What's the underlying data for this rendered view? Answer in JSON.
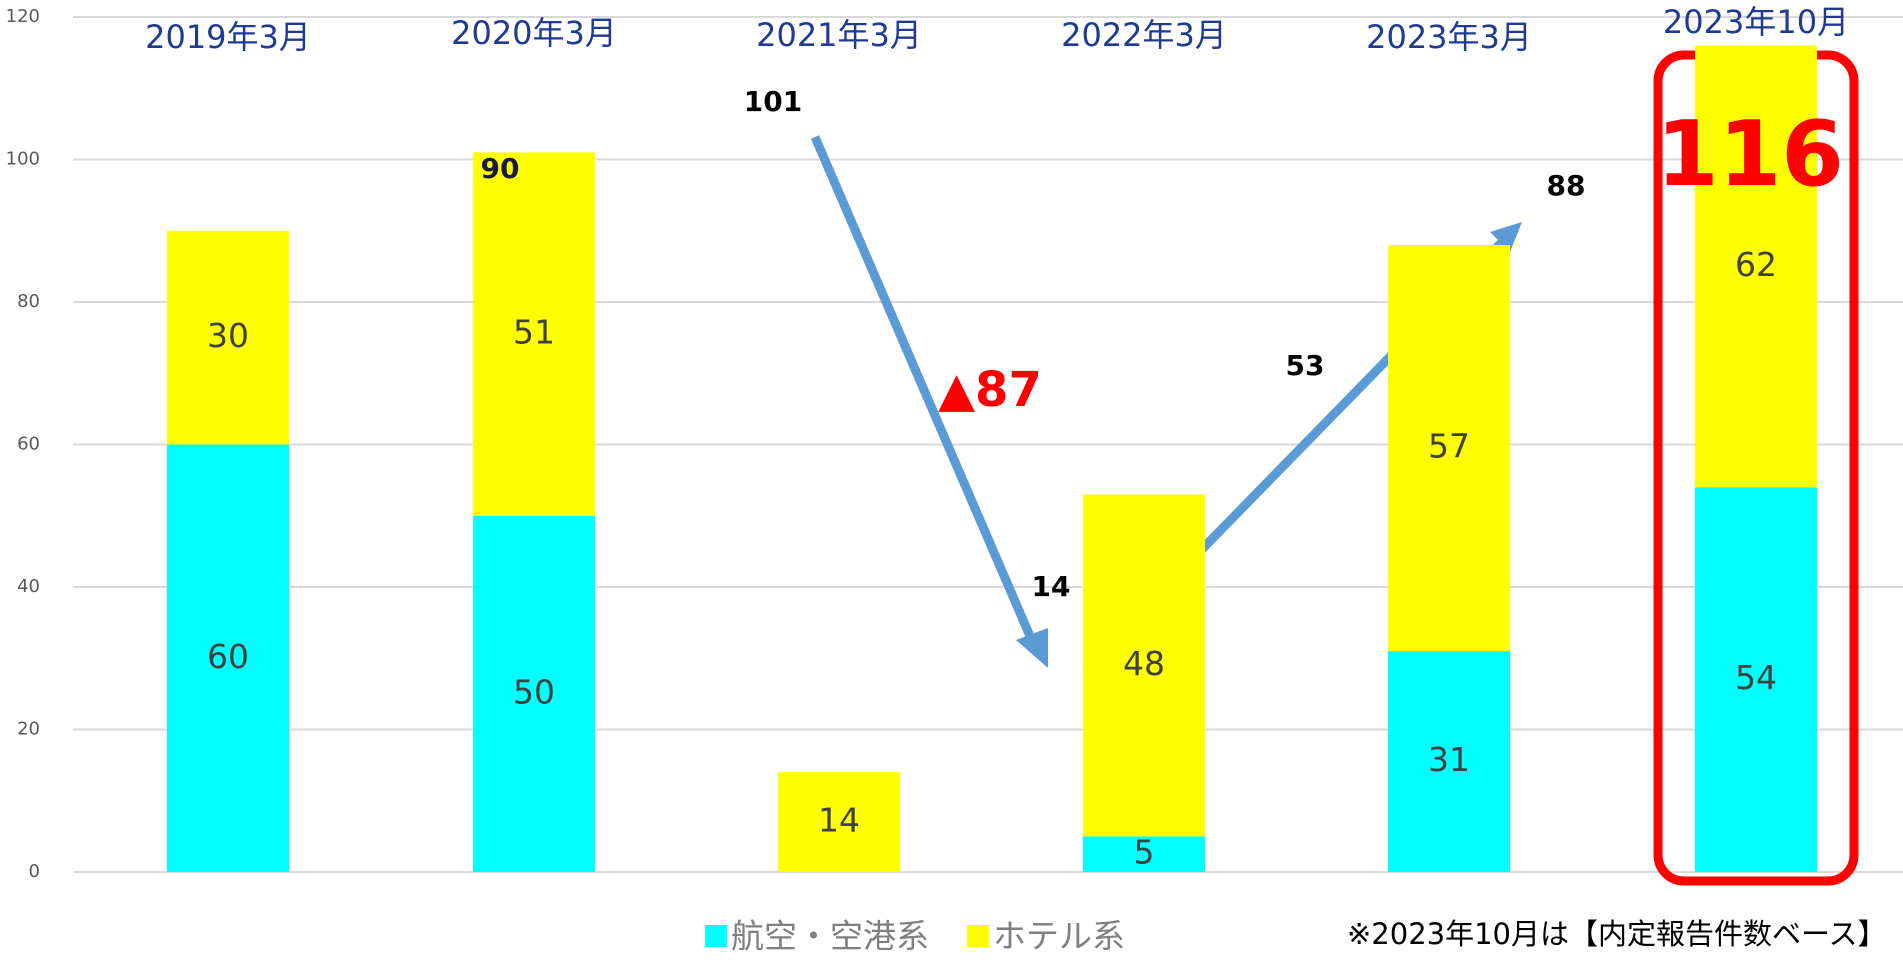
{
  "chart_data": {
    "type": "stacked-bar",
    "categories": [
      "2019年3月",
      "2020年3月",
      "2021年3月",
      "2022年3月",
      "2023年3月",
      "2023年10月"
    ],
    "series": [
      {
        "name": "航空・空港系",
        "color": "#00ffff",
        "values": [
          60,
          50,
          0,
          5,
          31,
          54
        ]
      },
      {
        "name": "ホテル系",
        "color": "#ffff00",
        "values": [
          30,
          51,
          14,
          48,
          57,
          62
        ]
      }
    ],
    "ylim": [
      0,
      120
    ],
    "yticks": [
      0,
      20,
      40,
      60,
      80,
      100,
      120
    ],
    "grid": true,
    "annotations": [
      "101",
      "90",
      "▲87",
      "14",
      "53",
      "88",
      "116"
    ],
    "footnote": "※2023年10月は【内定報告件数ベース】"
  }
}
